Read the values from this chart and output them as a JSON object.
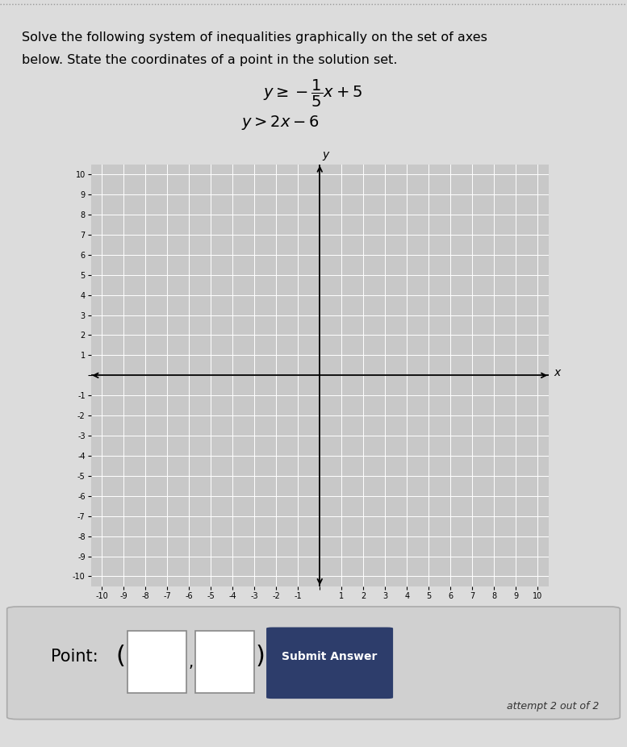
{
  "title_line1": "Solve the following system of inequalities graphically on the set of axes",
  "title_line2": "below. State the coordinates of a point in the solution set.",
  "ineq1": "$y \\geq -\\dfrac{1}{5}x + 5$",
  "ineq2": "$y > 2x - 6$",
  "xlim": [
    -10.5,
    10.5
  ],
  "ylim": [
    -10.5,
    10.5
  ],
  "axis_ticks": [
    -10,
    -9,
    -8,
    -7,
    -6,
    -5,
    -4,
    -3,
    -2,
    -1,
    0,
    1,
    2,
    3,
    4,
    5,
    6,
    7,
    8,
    9,
    10
  ],
  "page_bg": "#dcdcdc",
  "graph_bg": "#c8c8c8",
  "grid_color": "#ffffff",
  "bottom_box_bg": "#d0d0d0",
  "bottom_box_edge": "#aaaaaa",
  "input_box_edge": "#888888",
  "submit_btn_color": "#2d3d6b",
  "submit_text_color": "#ffffff",
  "point_label": "Point:",
  "submit_text": "Submit Answer",
  "attempt_text": "attempt 2 out of 2",
  "fig_width": 7.77,
  "fig_height": 9.26,
  "dpi": 100,
  "top_border_color": "#aaaaaa",
  "x_label": "x",
  "y_label": "y"
}
